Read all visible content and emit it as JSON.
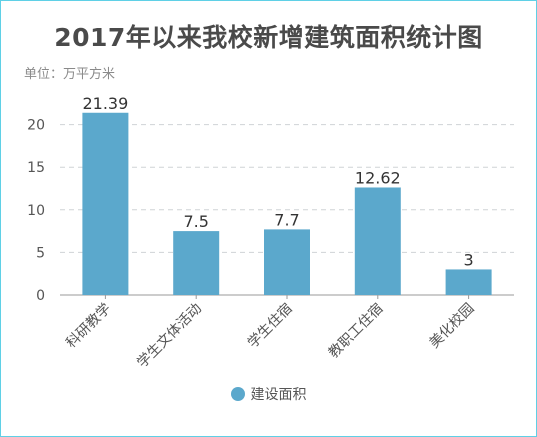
{
  "title": "2017年以来我校新增建筑面积统计图",
  "unit_label": "单位：万平方米",
  "colors": {
    "bar": "#5ba8cc",
    "frame": "#5fd0e6"
  },
  "chart_data": {
    "type": "bar",
    "title": "2017年以来我校新增建筑面积统计图",
    "categories": [
      "科研教学",
      "学生文体活动",
      "学生住宿",
      "教职工住宿",
      "美化校园"
    ],
    "series": [
      {
        "name": "建设面积",
        "values": [
          21.39,
          7.5,
          7.7,
          12.62,
          3
        ],
        "labels": [
          "21.39",
          "7.5",
          "7.7",
          "12.62",
          "3"
        ]
      }
    ],
    "xlabel": "",
    "ylabel": "",
    "ylim": [
      0,
      25
    ],
    "yticks": [
      0,
      5,
      10,
      15,
      20
    ],
    "grid": true,
    "legend_position": "bottom-center"
  }
}
